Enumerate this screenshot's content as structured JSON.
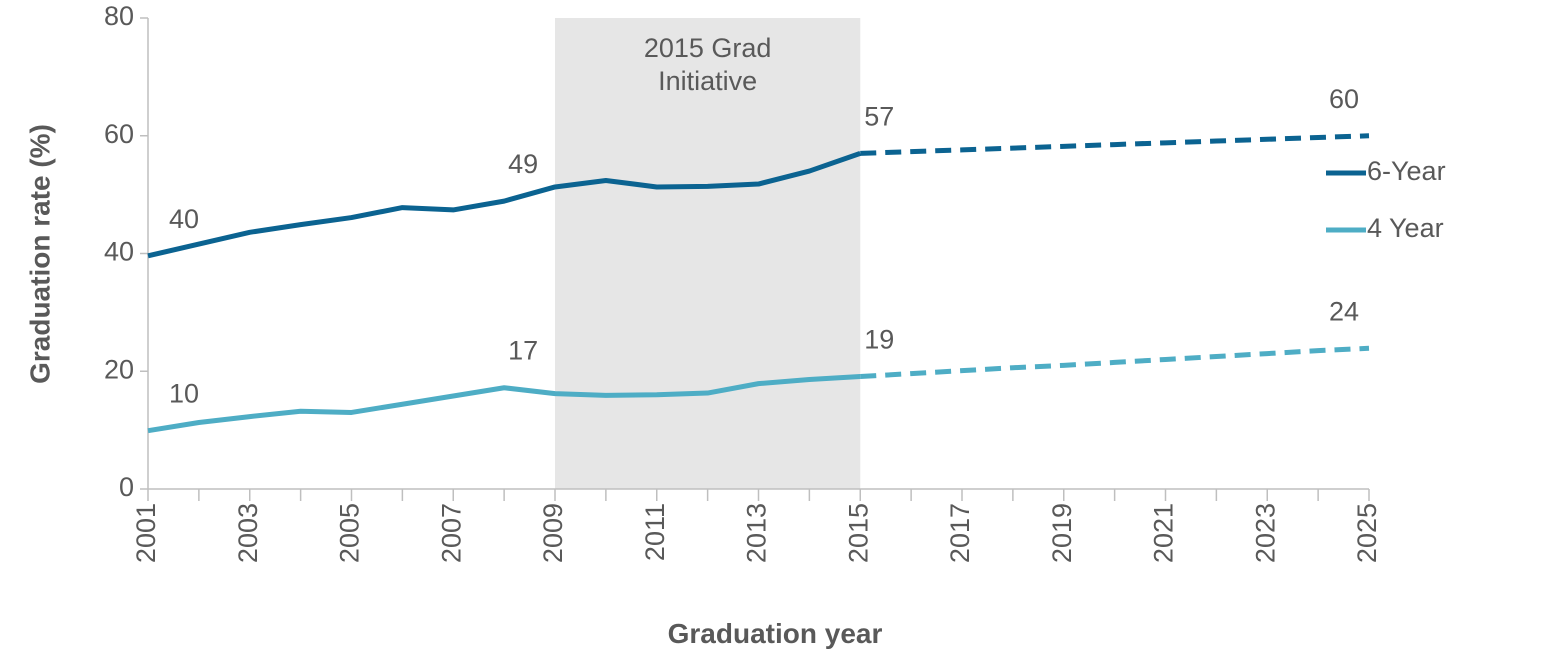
{
  "chart_data": {
    "type": "line",
    "x_label": "Graduation year",
    "y_label": "Graduation rate (%)",
    "x": [
      2001,
      2002,
      2003,
      2004,
      2005,
      2006,
      2007,
      2008,
      2009,
      2010,
      2011,
      2012,
      2013,
      2014,
      2015,
      2016,
      2017,
      2018,
      2019,
      2020,
      2021,
      2022,
      2023,
      2024,
      2025
    ],
    "xlim": [
      2001,
      2025
    ],
    "xticks": [
      2001,
      2003,
      2005,
      2007,
      2009,
      2011,
      2013,
      2015,
      2017,
      2019,
      2021,
      2023,
      2025
    ],
    "ylim": [
      0,
      80
    ],
    "yticks": [
      0,
      20,
      40,
      60,
      80
    ],
    "shaded_region": {
      "x": [
        2009,
        2015
      ],
      "color": "#e6e6e6",
      "label": [
        "2015 Grad",
        "Initiative"
      ]
    },
    "legend": "right",
    "series": [
      {
        "name": "6-Year",
        "color": "#0b6391",
        "values": [
          39.6,
          41.6,
          43.6,
          44.9,
          46.1,
          47.8,
          47.4,
          48.9,
          51.3,
          52.4,
          51.3,
          51.4,
          51.8,
          54.0,
          57.0,
          null,
          null,
          null,
          null,
          null,
          null,
          null,
          null,
          null,
          null
        ],
        "value_labels": [
          "40",
          null,
          null,
          null,
          null,
          null,
          null,
          "49",
          null,
          null,
          null,
          null,
          null,
          null,
          "57",
          null,
          null,
          null,
          null,
          null,
          null,
          null,
          null,
          null,
          null
        ],
        "projected_values": [
          null,
          null,
          null,
          null,
          null,
          null,
          null,
          null,
          null,
          null,
          null,
          null,
          null,
          null,
          57.0,
          57.3,
          57.6,
          57.9,
          58.2,
          58.5,
          58.8,
          59.1,
          59.4,
          59.7,
          60.0
        ],
        "projected_value_labels": [
          null,
          null,
          null,
          null,
          null,
          null,
          null,
          null,
          null,
          null,
          null,
          null,
          null,
          null,
          null,
          null,
          null,
          null,
          null,
          null,
          null,
          null,
          null,
          null,
          "60"
        ]
      },
      {
        "name": "4 Year",
        "color": "#4eadc5",
        "values": [
          9.9,
          11.3,
          12.3,
          13.2,
          13.0,
          14.4,
          15.8,
          17.2,
          16.2,
          15.9,
          16.0,
          16.3,
          17.9,
          18.6,
          19.1,
          null,
          null,
          null,
          null,
          null,
          null,
          null,
          null,
          null,
          null
        ],
        "value_labels": [
          "10",
          null,
          null,
          null,
          null,
          null,
          null,
          "17",
          null,
          null,
          null,
          null,
          null,
          null,
          "19",
          null,
          null,
          null,
          null,
          null,
          null,
          null,
          null,
          null,
          null
        ],
        "projected_values": [
          null,
          null,
          null,
          null,
          null,
          null,
          null,
          null,
          null,
          null,
          null,
          null,
          null,
          null,
          19.1,
          19.6,
          20.1,
          20.6,
          21.0,
          21.5,
          22.0,
          22.5,
          23.0,
          23.5,
          23.9
        ],
        "projected_value_labels": [
          null,
          null,
          null,
          null,
          null,
          null,
          null,
          null,
          null,
          null,
          null,
          null,
          null,
          null,
          null,
          null,
          null,
          null,
          null,
          null,
          null,
          null,
          null,
          null,
          "24"
        ]
      }
    ]
  }
}
